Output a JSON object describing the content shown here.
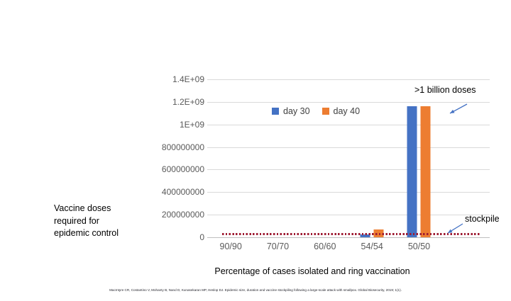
{
  "slide": {
    "citation": "MacIntyre CR, Costantino V, Mohanty B, Nand D, Kunasekaran MP, Heslop DJ. Epidemic size, duration and vaccine stockpiling following a large-scale attack with smallpox. Global Biosecurity, 2019; 1(1)."
  },
  "annotations": {
    "billion_label": ">1 billion doses",
    "stockpile_label": "stockpile"
  },
  "chart_data": {
    "type": "bar",
    "title": "",
    "xlabel": "Percentage of cases isolated and ring vaccination",
    "ylabel": "Vaccine doses required for epidemic control",
    "categories": [
      "90/90",
      "70/70",
      "60/60",
      "54/54",
      "50/50"
    ],
    "extra_empty_category_slots": 1,
    "series": [
      {
        "name": "day 30",
        "color": "#4472C4",
        "values": [
          0,
          0,
          0,
          25000000,
          1160000000
        ]
      },
      {
        "name": "day 40",
        "color": "#ED7D31",
        "values": [
          0,
          0,
          0,
          70000000,
          1160000000
        ]
      }
    ],
    "ylim": [
      0,
      1400000000
    ],
    "yticks": [
      {
        "label": "1.4E+09",
        "value": 1400000000
      },
      {
        "label": "1.2E+09",
        "value": 1200000000
      },
      {
        "label": "1E+09",
        "value": 1000000000
      },
      {
        "label": "800000000",
        "value": 800000000
      },
      {
        "label": "600000000",
        "value": 600000000
      },
      {
        "label": "400000000",
        "value": 400000000
      },
      {
        "label": "200000000",
        "value": 200000000
      },
      {
        "label": "0",
        "value": 0
      }
    ],
    "grid": "horizontal",
    "legend_position": "top-center",
    "reference_line": {
      "name": "stockpile",
      "value": 30000000,
      "color": "#9e1b32",
      "style": "dotted"
    },
    "annotation_arrow_color": "#4472C4"
  }
}
